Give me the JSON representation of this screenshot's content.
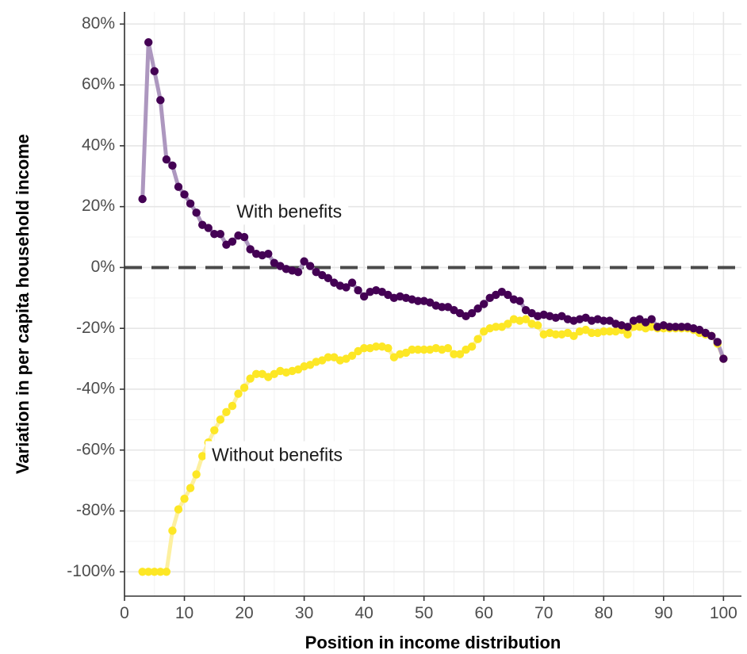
{
  "chart_data": {
    "type": "line",
    "xlabel": "Position in income distribution",
    "ylabel": "Variation in per capita household income",
    "xlim": [
      0,
      103
    ],
    "ylim": [
      -108,
      84
    ],
    "x_ticks": [
      0,
      10,
      20,
      30,
      40,
      50,
      60,
      70,
      80,
      90,
      100
    ],
    "y_ticks": [
      -100,
      -80,
      -60,
      -40,
      -20,
      0,
      20,
      40,
      60,
      80
    ],
    "y_tick_labels": [
      "-100%",
      "-80%",
      "-60%",
      "-40%",
      "-20%",
      "0%",
      "20%",
      "40%",
      "60%",
      "80%"
    ],
    "grid": true,
    "reference_line": {
      "y": 0,
      "style": "dashed",
      "color": "#4a4a4a"
    },
    "series": [
      {
        "color": "#440154",
        "line_color": "#ad97bf",
        "x": [
          3,
          4,
          5,
          6,
          7,
          8,
          9,
          10,
          11,
          12,
          13,
          14,
          15,
          16,
          17,
          18,
          19,
          20,
          21,
          22,
          23,
          24,
          25,
          26,
          27,
          28,
          29,
          30,
          31,
          32,
          33,
          34,
          35,
          36,
          37,
          38,
          39,
          40,
          41,
          42,
          43,
          44,
          45,
          46,
          47,
          48,
          49,
          50,
          51,
          52,
          53,
          54,
          55,
          56,
          57,
          58,
          59,
          60,
          61,
          62,
          63,
          64,
          65,
          66,
          67,
          68,
          69,
          70,
          71,
          72,
          73,
          74,
          75,
          76,
          77,
          78,
          79,
          80,
          81,
          82,
          83,
          84,
          85,
          86,
          87,
          88,
          89,
          90,
          91,
          92,
          93,
          94,
          95,
          96,
          97,
          98,
          99,
          100
        ],
        "values": [
          22.5,
          74,
          64.5,
          55,
          35.5,
          33.5,
          26.5,
          24,
          21,
          18,
          14,
          13,
          11,
          11,
          7.5,
          8.5,
          10.5,
          10,
          6,
          4.5,
          4,
          4.5,
          1.5,
          0.5,
          -0.5,
          -1,
          -1.5,
          2,
          0.5,
          -1.5,
          -2.5,
          -3.5,
          -5,
          -6,
          -6.5,
          -5,
          -7.5,
          -9.5,
          -8,
          -7.5,
          -8,
          -9,
          -10,
          -9.5,
          -10,
          -10.5,
          -11,
          -11,
          -11.5,
          -12.5,
          -13,
          -13,
          -14,
          -15,
          -16,
          -15,
          -13.5,
          -12,
          -10,
          -9,
          -8,
          -9,
          -10.5,
          -11,
          -14,
          -15,
          -16,
          -15.5,
          -16,
          -16.5,
          -16,
          -17,
          -17.5,
          -17,
          -16.5,
          -17.5,
          -17,
          -17.5,
          -17.5,
          -18.5,
          -19,
          -19.5,
          -17.5,
          -17,
          -18,
          -17,
          -19.5,
          -19,
          -19.5,
          -19.5,
          -19.5,
          -19.5,
          -20,
          -20.5,
          -21.5,
          -22.5,
          -24.5,
          -30
        ]
      },
      {
        "color": "#fde725",
        "line_color": "#fdf0a0",
        "x": [
          3,
          4,
          5,
          6,
          7,
          8,
          9,
          10,
          11,
          12,
          13,
          14,
          15,
          16,
          17,
          18,
          19,
          20,
          21,
          22,
          23,
          24,
          25,
          26,
          27,
          28,
          29,
          30,
          31,
          32,
          33,
          34,
          35,
          36,
          37,
          38,
          39,
          40,
          41,
          42,
          43,
          44,
          45,
          46,
          47,
          48,
          49,
          50,
          51,
          52,
          53,
          54,
          55,
          56,
          57,
          58,
          59,
          60,
          61,
          62,
          63,
          64,
          65,
          66,
          67,
          68,
          69,
          70,
          71,
          72,
          73,
          74,
          75,
          76,
          77,
          78,
          79,
          80,
          81,
          82,
          83,
          84,
          85,
          86,
          87,
          88,
          89,
          90,
          91,
          92,
          93,
          94,
          95,
          96,
          97,
          98,
          99,
          100
        ],
        "values": [
          -100,
          -100,
          -100,
          -100,
          -100,
          -86.5,
          -79.5,
          -76,
          -72.5,
          -68,
          -62,
          -57.5,
          -53.5,
          -50,
          -47.5,
          -45.5,
          -41.5,
          -39.5,
          -36.5,
          -35,
          -35,
          -36,
          -35,
          -34,
          -34.5,
          -34,
          -33.5,
          -32.5,
          -32,
          -31,
          -30.5,
          -29.5,
          -29.5,
          -30.5,
          -30,
          -29,
          -27.5,
          -26.5,
          -26.5,
          -26,
          -26,
          -26.5,
          -29.5,
          -28.5,
          -28,
          -27,
          -27,
          -27,
          -27,
          -26.5,
          -27,
          -26.5,
          -28.5,
          -28.5,
          -27,
          -26,
          -23.5,
          -21,
          -20,
          -19.5,
          -19.5,
          -18.5,
          -17,
          -17.5,
          -17,
          -18.5,
          -19,
          -22,
          -21.5,
          -22,
          -22,
          -21.5,
          -22.5,
          -21,
          -20.5,
          -21.5,
          -21.5,
          -21,
          -21,
          -21,
          -20.5,
          -22,
          -19.5,
          -19.5,
          -20,
          -19.5,
          -20,
          -20,
          -20,
          -20,
          -20,
          -20,
          -20.5,
          -21.5,
          -22,
          -22.5,
          -25,
          -30
        ]
      }
    ],
    "annotations": [
      {
        "text": "With benefits",
        "x": 27.5,
        "y": 18
      },
      {
        "text": "Without benefits",
        "x": 25.5,
        "y": -62
      }
    ]
  }
}
